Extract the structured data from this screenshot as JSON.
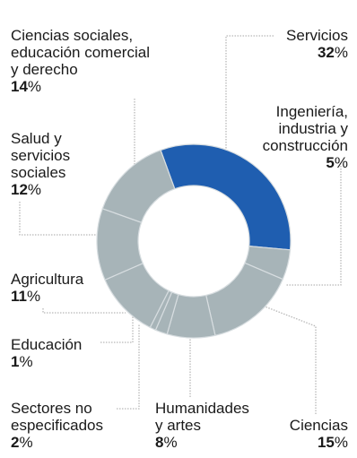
{
  "chart_data": {
    "type": "donut",
    "colors": {
      "highlight": "#1f5eb0",
      "base": "#a7b4b8",
      "separator": "#d7dde0",
      "leader": "#b8b8b8"
    },
    "series": [
      {
        "category": "Servicios",
        "value": 32,
        "highlight": true
      },
      {
        "category": "Ingeniería, industria y construcción",
        "value": 5
      },
      {
        "category": "Ciencias",
        "value": 15
      },
      {
        "category": "Humanidades y artes",
        "value": 8
      },
      {
        "category": "Sectores no especificados",
        "value": 2
      },
      {
        "category": "Educación",
        "value": 1
      },
      {
        "category": "Agricultura",
        "value": 11
      },
      {
        "category": "Salud y servicios sociales",
        "value": 12
      },
      {
        "category": "Ciencias sociales, educación comercial y derecho",
        "value": 14
      }
    ]
  },
  "labels": {
    "servicios": {
      "lines": [
        "Servicios"
      ],
      "num": "32",
      "sym": "%"
    },
    "ingenieria": {
      "lines": [
        "Ingeniería,",
        "industria y",
        "construcción"
      ],
      "num": "5",
      "sym": "%"
    },
    "ciencias": {
      "lines": [
        "Ciencias"
      ],
      "num": "15",
      "sym": "%"
    },
    "humanidades": {
      "lines": [
        "Humanidades",
        "y artes"
      ],
      "num": "8",
      "sym": "%"
    },
    "sectores": {
      "lines": [
        "Sectores no",
        "especificados"
      ],
      "num": "2",
      "sym": "%"
    },
    "educacion": {
      "lines": [
        "Educación"
      ],
      "num": "1",
      "sym": "%"
    },
    "agricultura": {
      "lines": [
        "Agricultura"
      ],
      "num": "11",
      "sym": "%"
    },
    "salud": {
      "lines": [
        "Salud y",
        "servicios",
        "sociales"
      ],
      "num": "12",
      "sym": "%"
    },
    "cs_sociales": {
      "lines": [
        "Ciencias sociales,",
        "educación comercial",
        "y derecho"
      ],
      "num": "14",
      "sym": "%"
    }
  }
}
